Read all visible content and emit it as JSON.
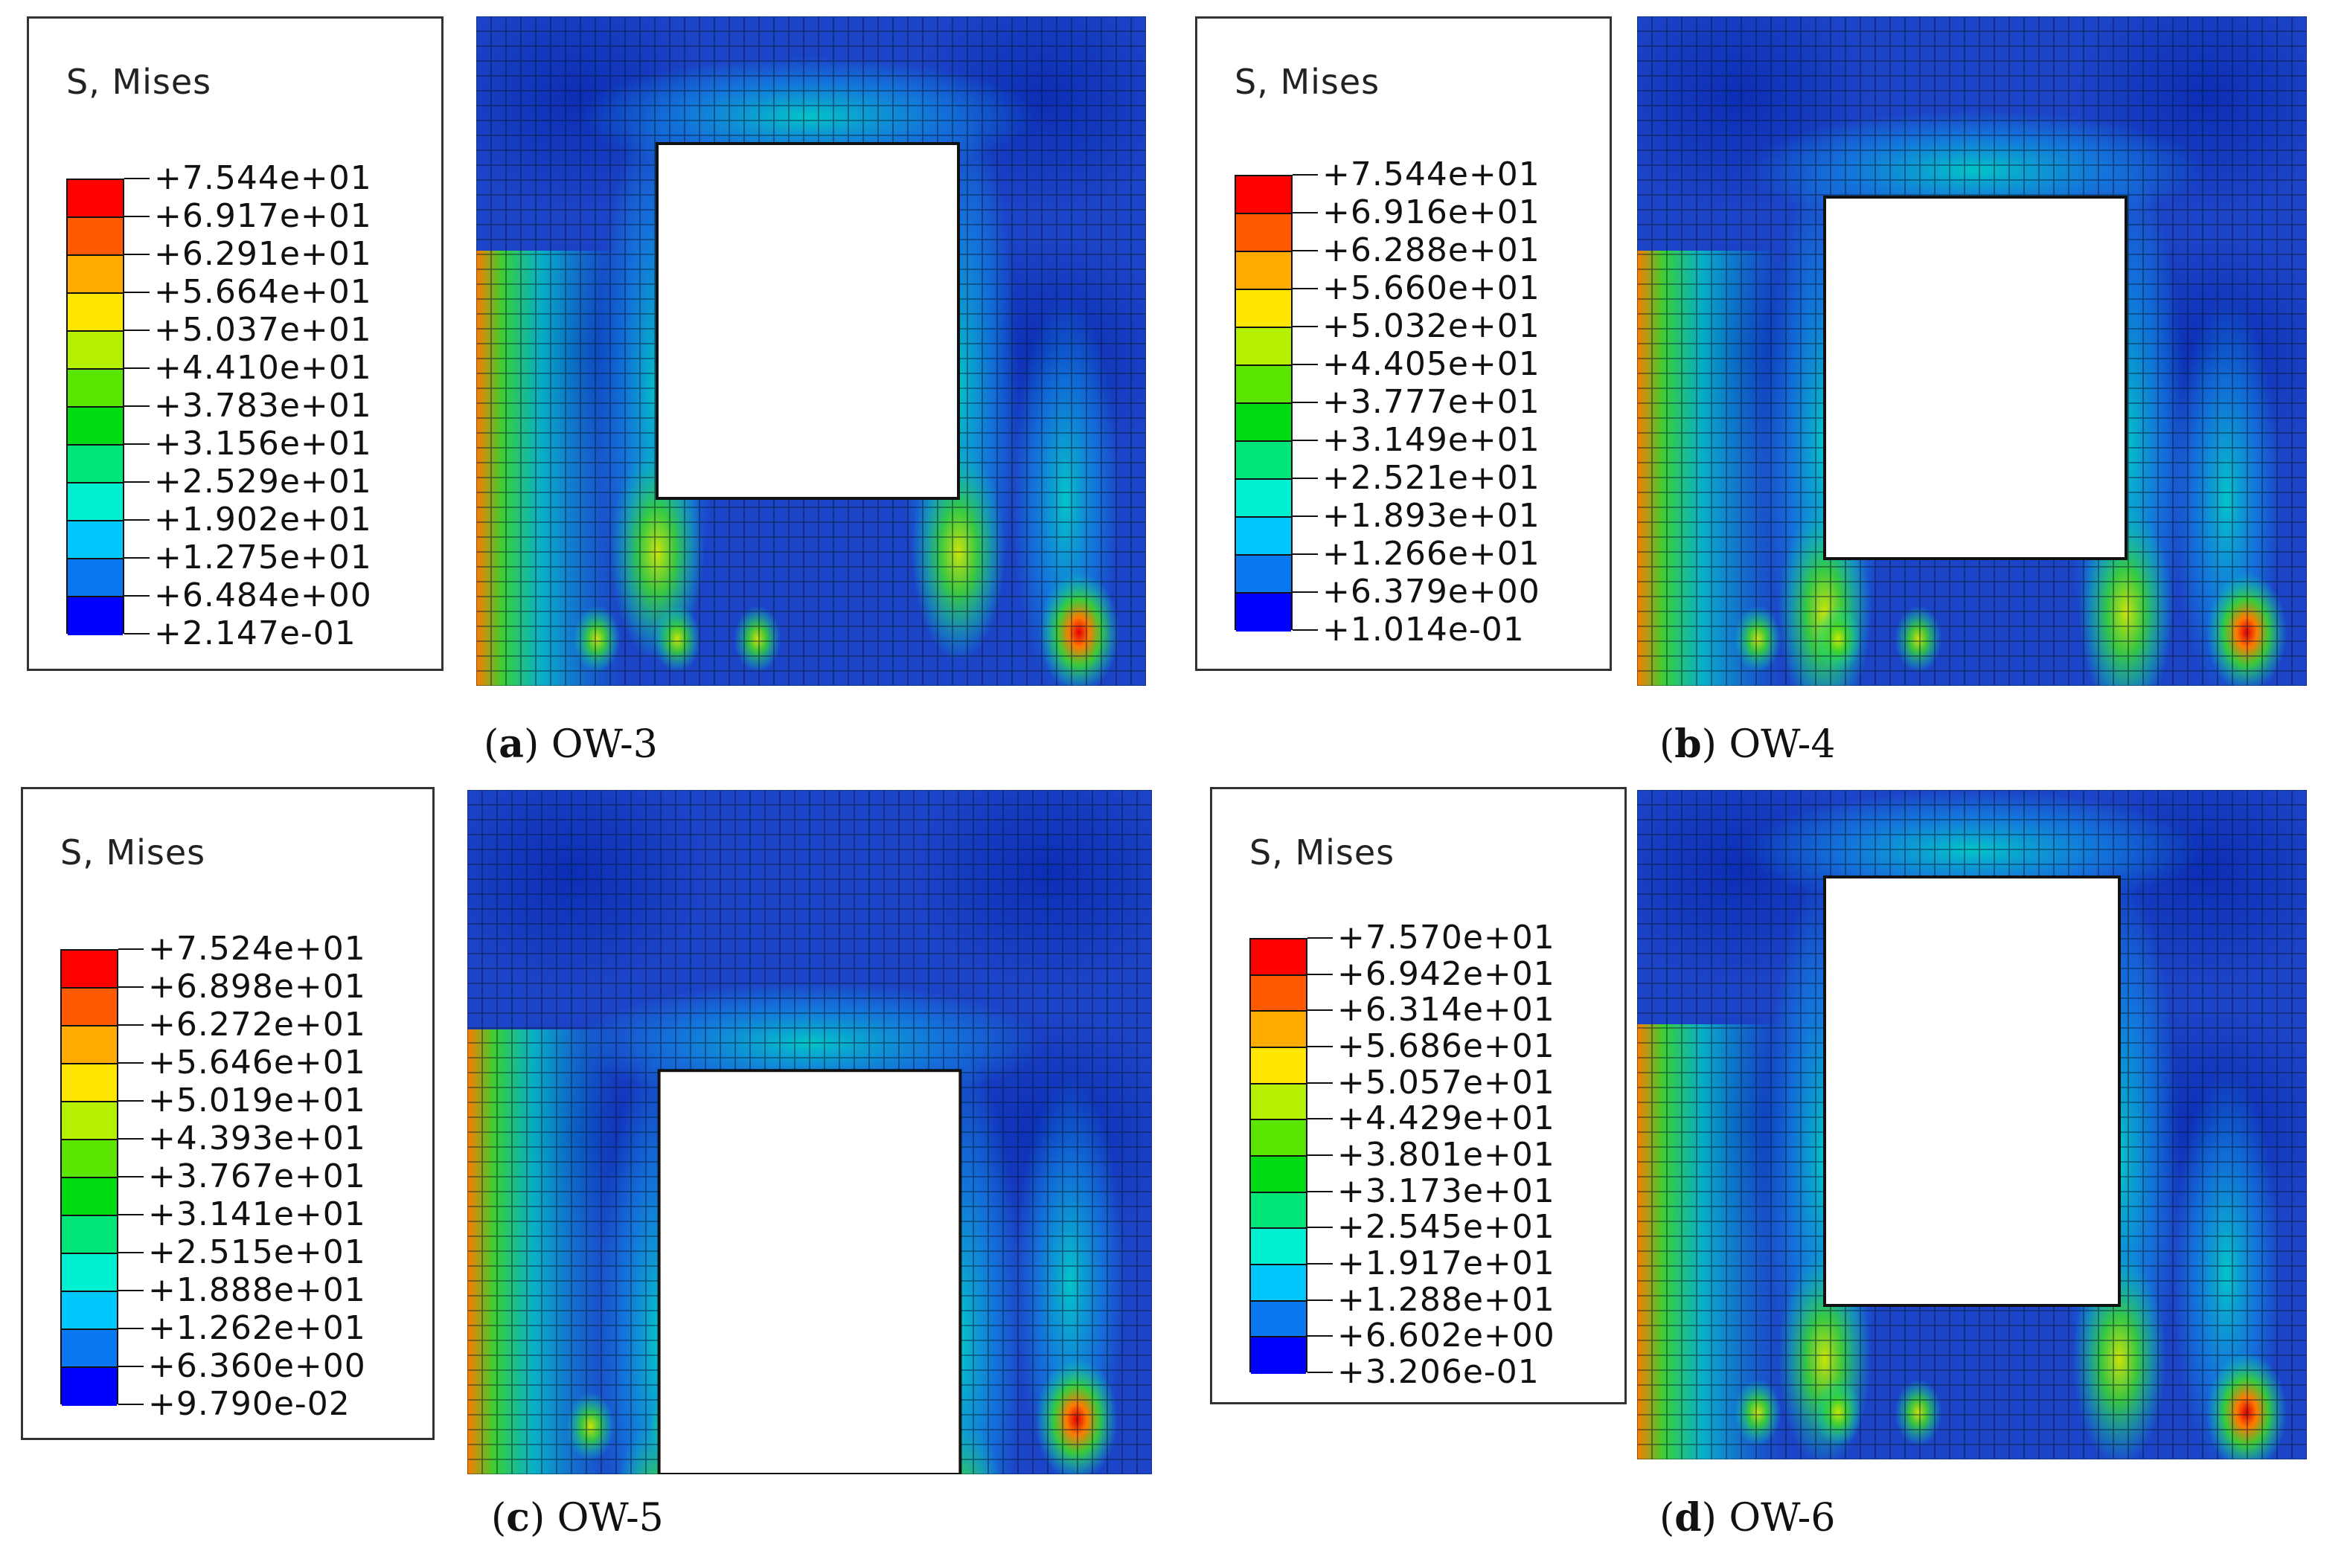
{
  "legend_title": "S, Mises",
  "colors": [
    "#ff0000",
    "#ff5a00",
    "#ffab00",
    "#ffe600",
    "#b4f000",
    "#5ae600",
    "#00dc14",
    "#00e678",
    "#00f0d2",
    "#00c8ff",
    "#0a78f0",
    "#0000ff"
  ],
  "field_colors": {
    "background": "#1c44c8",
    "deep": "#0c2eb6",
    "mid": "#0f8fe8",
    "cyan": "#00dcc8",
    "green": "#3cd72a",
    "yellow": "#d6ea00",
    "orange": "#ff7a00",
    "red": "#e10000",
    "mesh": "#0a1a2a"
  },
  "panels": [
    {
      "id": "a",
      "label": "OW-3",
      "letter": "a",
      "values": [
        "+7.544e+01",
        "+6.917e+01",
        "+6.291e+01",
        "+5.664e+01",
        "+5.037e+01",
        "+4.410e+01",
        "+3.783e+01",
        "+3.156e+01",
        "+2.529e+01",
        "+1.902e+01",
        "+1.275e+01",
        "+6.484e+00",
        "+2.147e-01"
      ]
    },
    {
      "id": "b",
      "label": "OW-4",
      "letter": "b",
      "values": [
        "+7.544e+01",
        "+6.916e+01",
        "+6.288e+01",
        "+5.660e+01",
        "+5.032e+01",
        "+4.405e+01",
        "+3.777e+01",
        "+3.149e+01",
        "+2.521e+01",
        "+1.893e+01",
        "+1.266e+01",
        "+6.379e+00",
        "+1.014e-01"
      ]
    },
    {
      "id": "c",
      "label": "OW-5",
      "letter": "c",
      "values": [
        "+7.524e+01",
        "+6.898e+01",
        "+6.272e+01",
        "+5.646e+01",
        "+5.019e+01",
        "+4.393e+01",
        "+3.767e+01",
        "+3.141e+01",
        "+2.515e+01",
        "+1.888e+01",
        "+1.262e+01",
        "+6.360e+00",
        "+9.790e-02"
      ]
    },
    {
      "id": "d",
      "label": "OW-6",
      "letter": "d",
      "values": [
        "+7.570e+01",
        "+6.942e+01",
        "+6.314e+01",
        "+5.686e+01",
        "+5.057e+01",
        "+4.429e+01",
        "+3.801e+01",
        "+3.173e+01",
        "+2.545e+01",
        "+1.917e+01",
        "+1.288e+01",
        "+6.602e+00",
        "+3.206e-01"
      ]
    }
  ]
}
